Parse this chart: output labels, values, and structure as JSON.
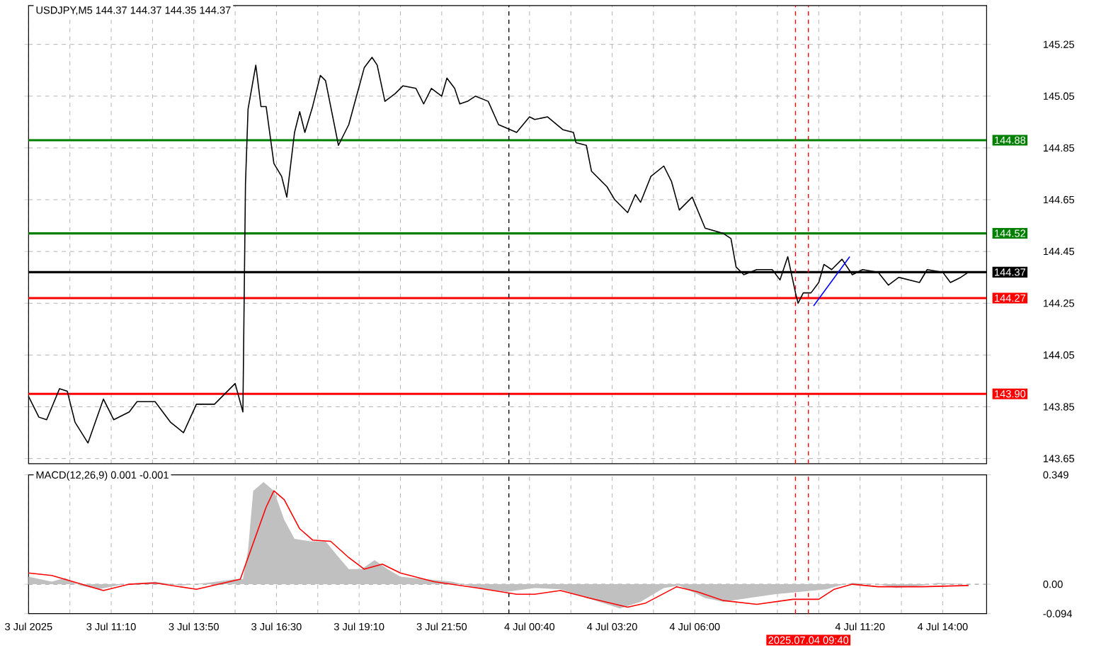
{
  "chart_data": [
    {
      "type": "line",
      "title": "USDJPY,M5  144.37 144.37 144.35 144.37",
      "x": [
        "2025-07-03T08:30",
        "2025-07-03T08:50",
        "2025-07-03T09:05",
        "2025-07-03T09:30",
        "2025-07-03T09:45",
        "2025-07-03T10:00",
        "2025-07-03T10:25",
        "2025-07-03T10:55",
        "2025-07-03T11:15",
        "2025-07-03T11:45",
        "2025-07-03T12:00",
        "2025-07-03T12:35",
        "2025-07-03T13:05",
        "2025-07-03T13:30",
        "2025-07-03T13:55",
        "2025-07-03T14:30",
        "2025-07-03T15:10",
        "2025-07-03T15:25",
        "2025-07-03T15:30",
        "2025-07-03T15:35",
        "2025-07-03T15:50",
        "2025-07-03T16:00",
        "2025-07-03T16:10",
        "2025-07-03T16:25",
        "2025-07-03T16:40",
        "2025-07-03T16:50",
        "2025-07-03T17:05",
        "2025-07-03T17:15",
        "2025-07-03T17:25",
        "2025-07-03T17:40",
        "2025-07-03T17:55",
        "2025-07-03T18:05",
        "2025-07-03T18:15",
        "2025-07-03T18:30",
        "2025-07-03T18:50",
        "2025-07-03T19:05",
        "2025-07-03T19:20",
        "2025-07-03T19:35",
        "2025-07-03T19:45",
        "2025-07-03T20:00",
        "2025-07-03T20:20",
        "2025-07-03T20:35",
        "2025-07-03T21:00",
        "2025-07-03T21:15",
        "2025-07-03T21:30",
        "2025-07-03T21:50",
        "2025-07-03T22:00",
        "2025-07-03T22:15",
        "2025-07-03T22:25",
        "2025-07-03T22:40",
        "2025-07-03T22:55",
        "2025-07-03T23:20",
        "2025-07-03T23:40",
        "2025-07-04T00:15",
        "2025-07-04T00:40",
        "2025-07-04T00:50",
        "2025-07-04T01:15",
        "2025-07-04T01:45",
        "2025-07-04T02:05",
        "2025-07-04T02:10",
        "2025-07-04T02:30",
        "2025-07-04T02:40",
        "2025-07-04T03:10",
        "2025-07-04T03:25",
        "2025-07-04T03:50",
        "2025-07-04T04:05",
        "2025-07-04T04:15",
        "2025-07-04T04:35",
        "2025-07-04T05:00",
        "2025-07-04T05:15",
        "2025-07-04T05:30",
        "2025-07-04T05:55",
        "2025-07-04T06:20",
        "2025-07-04T06:55",
        "2025-07-04T07:10",
        "2025-07-04T07:20",
        "2025-07-04T07:35",
        "2025-07-04T08:00",
        "2025-07-04T08:30",
        "2025-07-04T08:45",
        "2025-07-04T09:00",
        "2025-07-04T09:15",
        "2025-07-04T09:20",
        "2025-07-04T09:30",
        "2025-07-04T09:45",
        "2025-07-04T10:00",
        "2025-07-04T10:10",
        "2025-07-04T10:25",
        "2025-07-04T10:45",
        "2025-07-04T11:05",
        "2025-07-04T11:25",
        "2025-07-04T11:55",
        "2025-07-04T12:15",
        "2025-07-04T12:35",
        "2025-07-04T13:15",
        "2025-07-04T13:30",
        "2025-07-04T14:00",
        "2025-07-04T14:15",
        "2025-07-04T14:35",
        "2025-07-04T14:50"
      ],
      "series": [
        {
          "color": "#000000",
          "values": [
            143.89,
            143.81,
            143.8,
            143.92,
            143.91,
            143.79,
            143.71,
            143.88,
            143.8,
            143.83,
            143.87,
            143.87,
            143.79,
            143.75,
            143.86,
            143.86,
            143.94,
            143.83,
            144.71,
            145.0,
            145.17,
            145.01,
            145.01,
            144.79,
            144.74,
            144.66,
            144.91,
            144.99,
            144.91,
            145.01,
            145.13,
            145.11,
            145.01,
            144.86,
            144.94,
            145.05,
            145.16,
            145.2,
            145.17,
            145.03,
            145.06,
            145.09,
            145.08,
            145.02,
            145.08,
            145.05,
            145.12,
            145.08,
            145.02,
            145.03,
            145.05,
            145.03,
            144.94,
            144.91,
            144.97,
            144.96,
            144.97,
            144.92,
            144.91,
            144.87,
            144.86,
            144.76,
            144.7,
            144.65,
            144.6,
            144.67,
            144.64,
            144.74,
            144.78,
            144.72,
            144.61,
            144.66,
            144.54,
            144.52,
            144.5,
            144.39,
            144.36,
            144.38,
            144.38,
            144.34,
            144.43,
            144.29,
            144.25,
            144.29,
            144.29,
            144.33,
            144.4,
            144.38,
            144.42,
            144.36,
            144.38,
            144.37,
            144.32,
            144.35,
            144.33,
            144.38,
            144.37,
            144.33,
            144.35,
            144.37
          ]
        },
        {
          "color": "#0000ff",
          "x": [
            "2025-07-04T09:50",
            "2025-07-04T11:00"
          ],
          "values": [
            144.24,
            144.43
          ]
        }
      ],
      "xlim": [
        "2025-07-03T08:30",
        "2025-07-04T15:25"
      ],
      "xticks": [
        "2025-07-03T08:30",
        "2025-07-03T09:50",
        "2025-07-03T11:10",
        "2025-07-03T12:30",
        "2025-07-03T13:50",
        "2025-07-03T15:10",
        "2025-07-03T16:30",
        "2025-07-03T17:50",
        "2025-07-03T19:10",
        "2025-07-03T20:30",
        "2025-07-03T21:50",
        "2025-07-03T23:10",
        "2025-07-04T00:40",
        "2025-07-04T02:00",
        "2025-07-04T03:20",
        "2025-07-04T04:40",
        "2025-07-04T06:00",
        "2025-07-04T07:20",
        "2025-07-04T08:40",
        "2025-07-04T10:00",
        "2025-07-04T11:20",
        "2025-07-04T12:40",
        "2025-07-04T14:00"
      ],
      "ylim": [
        143.63,
        145.4
      ],
      "yticks": [
        143.65,
        143.85,
        144.05,
        144.25,
        144.45,
        144.65,
        144.85,
        145.05,
        145.25
      ],
      "tick_labels": "y",
      "grid": true,
      "ref_lines": [
        {
          "axis": "y",
          "value": 144.88,
          "label": "144.88",
          "color": "#008000",
          "line_style": "solid"
        },
        {
          "axis": "y",
          "value": 144.52,
          "label": "144.52",
          "color": "#008000",
          "line_style": "solid"
        },
        {
          "axis": "y",
          "value": 144.37,
          "label": "144.37",
          "color": "#000000",
          "line_style": "solid"
        },
        {
          "axis": "y",
          "value": 144.27,
          "label": "144.27",
          "color": "#ff0000",
          "line_style": "solid"
        },
        {
          "axis": "y",
          "value": 143.9,
          "label": "143.90",
          "color": "#ff0000",
          "line_style": "solid"
        },
        {
          "axis": "x",
          "value": "2025-07-04T00:00",
          "color": "#000000",
          "line_style": "dashed"
        },
        {
          "axis": "x",
          "value": "2025-07-04T09:15",
          "color": "#ff0000",
          "line_style": "dashed"
        },
        {
          "axis": "x",
          "value": "2025-07-04T09:40",
          "color": "#ff0000",
          "line_style": "dashed"
        }
      ]
    },
    {
      "type": "line",
      "title": "MACD(12,26,9) 0.001 -0.001",
      "series": [
        {
          "type": "area",
          "color": "#c0c0c0",
          "x": [
            "2025-07-03T08:30",
            "2025-07-03T09:15",
            "2025-07-03T09:40",
            "2025-07-03T10:10",
            "2025-07-03T10:45",
            "2025-07-03T11:35",
            "2025-07-03T12:35",
            "2025-07-03T13:25",
            "2025-07-03T14:15",
            "2025-07-03T15:10",
            "2025-07-03T15:25",
            "2025-07-03T15:35",
            "2025-07-03T15:45",
            "2025-07-03T16:05",
            "2025-07-03T16:25",
            "2025-07-03T16:45",
            "2025-07-03T17:05",
            "2025-07-03T17:35",
            "2025-07-03T18:05",
            "2025-07-03T18:25",
            "2025-07-03T18:50",
            "2025-07-03T19:15",
            "2025-07-03T19:40",
            "2025-07-03T20:05",
            "2025-07-03T20:30",
            "2025-07-03T21:20",
            "2025-07-03T22:10",
            "2025-07-03T23:00",
            "2025-07-03T23:55",
            "2025-07-04T00:50",
            "2025-07-04T01:40",
            "2025-07-04T02:55",
            "2025-07-04T03:35",
            "2025-07-04T04:15",
            "2025-07-04T05:00",
            "2025-07-04T05:30",
            "2025-07-04T06:20",
            "2025-07-04T06:55",
            "2025-07-04T07:45",
            "2025-07-04T08:35",
            "2025-07-04T09:25",
            "2025-07-04T10:15",
            "2025-07-04T10:40",
            "2025-07-04T11:05",
            "2025-07-04T11:55",
            "2025-07-04T12:30",
            "2025-07-04T13:20",
            "2025-07-04T13:50",
            "2025-07-04T14:50"
          ],
          "values": [
            0.024,
            0.008,
            0.02,
            -0.004,
            -0.016,
            0,
            0.008,
            -0.004,
            0.004,
            0.016,
            0.016,
            0.109,
            0.298,
            0.326,
            0.298,
            0.206,
            0.145,
            0.137,
            0.137,
            0.097,
            0.048,
            0.048,
            0.077,
            0.048,
            0.024,
            0.016,
            0.008,
            -0.012,
            -0.024,
            -0.012,
            -0.016,
            -0.056,
            -0.077,
            -0.056,
            -0.012,
            -0.004,
            -0.044,
            -0.056,
            -0.044,
            -0.032,
            -0.024,
            -0.016,
            -0.004,
            0.004,
            0,
            -0.012,
            -0.004,
            0.004,
            0
          ]
        },
        {
          "color": "#ff0000",
          "x": [
            "2025-07-03T08:30",
            "2025-07-03T09:15",
            "2025-07-03T10:05",
            "2025-07-03T10:55",
            "2025-07-03T11:45",
            "2025-07-03T12:35",
            "2025-07-03T13:55",
            "2025-07-03T15:20",
            "2025-07-03T15:35",
            "2025-07-03T16:10",
            "2025-07-03T16:25",
            "2025-07-03T16:45",
            "2025-07-03T17:15",
            "2025-07-03T17:40",
            "2025-07-03T18:15",
            "2025-07-03T18:50",
            "2025-07-03T19:20",
            "2025-07-03T19:55",
            "2025-07-03T20:30",
            "2025-07-03T21:35",
            "2025-07-03T23:00",
            "2025-07-04T00:15",
            "2025-07-04T00:50",
            "2025-07-04T01:40",
            "2025-07-04T02:35",
            "2025-07-04T03:50",
            "2025-07-04T04:25",
            "2025-07-04T05:25",
            "2025-07-04T06:05",
            "2025-07-04T06:55",
            "2025-07-04T08:00",
            "2025-07-04T09:10",
            "2025-07-04T10:00",
            "2025-07-04T10:30",
            "2025-07-04T11:05",
            "2025-07-04T11:55",
            "2025-07-04T13:20",
            "2025-07-04T14:50"
          ],
          "values": [
            0.036,
            0.028,
            0.004,
            -0.02,
            0,
            0.004,
            -0.016,
            0.016,
            0.085,
            0.246,
            0.298,
            0.27,
            0.177,
            0.141,
            0.137,
            0.085,
            0.048,
            0.064,
            0.036,
            0.008,
            -0.012,
            -0.032,
            -0.032,
            -0.02,
            -0.044,
            -0.073,
            -0.06,
            -0.008,
            -0.024,
            -0.052,
            -0.064,
            -0.048,
            -0.048,
            -0.016,
            0,
            -0.008,
            -0.008,
            -0.004
          ]
        }
      ],
      "xlim": [
        "2025-07-03T08:30",
        "2025-07-04T15:25"
      ],
      "xticks": [
        {
          "value": "2025-07-03T08:30",
          "label": "3 Jul 2025"
        },
        {
          "value": "2025-07-03T09:50",
          "label": null
        },
        {
          "value": "2025-07-03T11:10",
          "label": "3 Jul 11:10"
        },
        {
          "value": "2025-07-03T12:30",
          "label": null
        },
        {
          "value": "2025-07-03T13:50",
          "label": "3 Jul 13:50"
        },
        {
          "value": "2025-07-03T15:10",
          "label": null
        },
        {
          "value": "2025-07-03T16:30",
          "label": "3 Jul 16:30"
        },
        {
          "value": "2025-07-03T17:50",
          "label": null
        },
        {
          "value": "2025-07-03T19:10",
          "label": "3 Jul 19:10"
        },
        {
          "value": "2025-07-03T20:30",
          "label": null
        },
        {
          "value": "2025-07-03T21:50",
          "label": "3 Jul 21:50"
        },
        {
          "value": "2025-07-03T23:10",
          "label": null
        },
        {
          "value": "2025-07-04T00:40",
          "label": "4 Jul 00:40"
        },
        {
          "value": "2025-07-04T02:00",
          "label": null
        },
        {
          "value": "2025-07-04T03:20",
          "label": "4 Jul 03:20"
        },
        {
          "value": "2025-07-04T04:40",
          "label": null
        },
        {
          "value": "2025-07-04T06:00",
          "label": "4 Jul 06:00"
        },
        {
          "value": "2025-07-04T07:20",
          "label": null
        },
        {
          "value": "2025-07-04T08:40",
          "label": null
        },
        {
          "value": "2025-07-04T10:00",
          "label": null
        },
        {
          "value": "2025-07-04T11:20",
          "label": "4 Jul 11:20"
        },
        {
          "value": "2025-07-04T12:40",
          "label": null
        },
        {
          "value": "2025-07-04T14:00",
          "label": "4 Jul 14:00"
        }
      ],
      "ylim": [
        -0.094,
        0.349
      ],
      "yticks": [
        -0.094,
        {
          "value": 0,
          "label": "0.00"
        },
        0.349
      ],
      "grid": "x",
      "ref_lines": [
        {
          "axis": "y",
          "value": 0,
          "color": "#a0a0a0",
          "line_style": "dashed"
        },
        {
          "axis": "x",
          "value": "2025-07-04T00:00",
          "color": "#000000",
          "line_style": "dashed"
        },
        {
          "axis": "x",
          "value": "2025-07-04T09:15",
          "color": "#ff0000",
          "line_style": "dashed"
        },
        {
          "axis": "x",
          "value": "2025-07-04T09:40",
          "label": "2025.07.04 09:40",
          "color": "#ff0000",
          "line_style": "dashed"
        }
      ]
    }
  ]
}
